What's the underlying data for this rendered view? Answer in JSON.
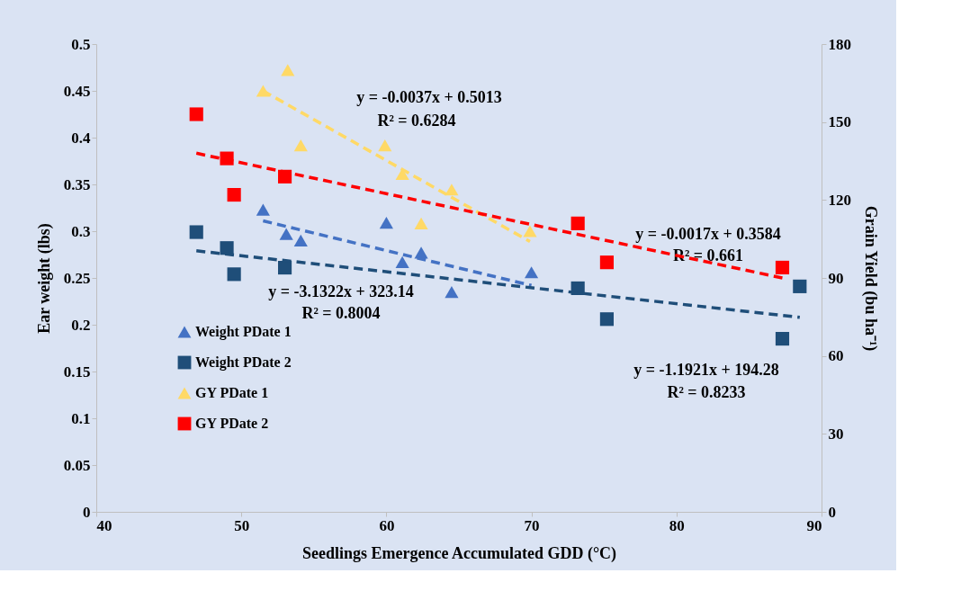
{
  "chart_data": {
    "type": "scatter",
    "xlabel": "Seedlings Emergence Accumulated GDD (°C)",
    "ylabel": "Ear weight (lbs)",
    "y2label": "Grain Yield (bu ha⁻¹)",
    "xlim": [
      40,
      90
    ],
    "xticks": [
      40,
      50,
      60,
      70,
      80,
      90
    ],
    "ylim": [
      0,
      0.5
    ],
    "yticks": [
      0,
      0.05,
      0.1,
      0.15,
      0.2,
      0.25,
      0.3,
      0.35,
      0.4,
      0.45,
      0.5
    ],
    "y2lim": [
      0,
      180
    ],
    "y2ticks": [
      0,
      30,
      60,
      90,
      120,
      150,
      180
    ],
    "grid": false,
    "legend": "bottom left",
    "series": [
      {
        "name": "Weight PDate 1",
        "marker": "triangle",
        "color": "#4472c4",
        "x": [
          51.5,
          53.1,
          54.1,
          60.0,
          61.1,
          62.4,
          64.5,
          70.0
        ],
        "values": [
          0.323,
          0.297,
          0.29,
          0.309,
          0.267,
          0.277,
          0.235,
          0.256
        ]
      },
      {
        "name": "Weight PDate 2",
        "marker": "square",
        "color": "#1f4e79",
        "x": [
          46.9,
          49.0,
          49.5,
          53.0,
          73.2,
          75.2,
          87.3,
          88.5
        ],
        "values": [
          0.299,
          0.282,
          0.254,
          0.261,
          0.239,
          0.206,
          0.185,
          0.241
        ]
      },
      {
        "name": "GY PDate 1",
        "axis": "y2",
        "marker": "triangle",
        "color": "#ffd966",
        "x": [
          51.5,
          53.2,
          54.1,
          59.9,
          61.1,
          62.4,
          64.5,
          69.9
        ],
        "values": [
          162,
          170,
          141,
          141,
          130,
          111,
          124,
          108
        ]
      },
      {
        "name": "GY PDate 2",
        "axis": "y2",
        "marker": "square",
        "color": "#ff0000",
        "x": [
          46.9,
          49.0,
          49.5,
          53.0,
          73.2,
          75.2,
          87.3
        ],
        "values": [
          153,
          136,
          122,
          129,
          111,
          96,
          94
        ]
      },
      {
        "type": "line",
        "line_style": "dashed",
        "color": "#4472c4",
        "x": [
          51.5,
          70.0
        ],
        "values": [
          0.311,
          0.242
        ]
      },
      {
        "type": "line",
        "line_style": "dashed",
        "color": "#1f4e79",
        "x": [
          46.9,
          88.5
        ],
        "values": [
          0.279,
          0.208
        ]
      },
      {
        "type": "line",
        "axis": "y2",
        "line_style": "dashed",
        "color": "#ffd966",
        "x": [
          51.5,
          69.9
        ],
        "values": [
          162,
          104
        ]
      },
      {
        "type": "line",
        "axis": "y2",
        "line_style": "dashed",
        "color": "#ff0000",
        "x": [
          46.9,
          87.3
        ],
        "values": [
          138,
          90
        ]
      }
    ],
    "annotations": [
      "y = -0.0037x + 0.5013",
      "R² = 0.6284",
      "y = -3.1322x + 323.14",
      "R² = 0.8004",
      "y = -0.0017x + 0.3584",
      "R² = 0.661",
      "y = -1.1921x + 194.28",
      "R² = 0.8233"
    ]
  }
}
